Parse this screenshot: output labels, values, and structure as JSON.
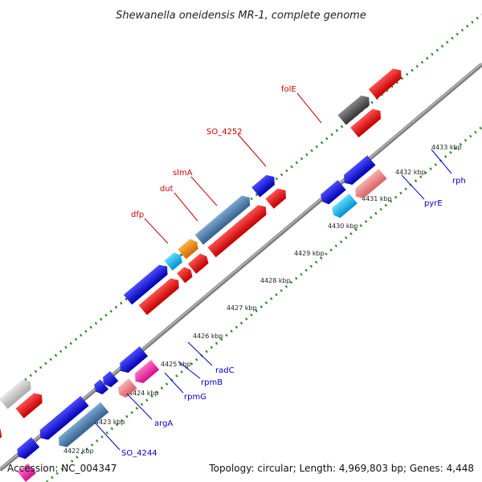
{
  "header": {
    "title": "Shewanella oneidensis MR-1, complete genome"
  },
  "footer": {
    "accession": "Accession: NC_004347",
    "summary": "Topology: circular; Length: 4,969,803 bp; Genes: 4,448"
  },
  "colors": {
    "backbone": "#8a8a8a",
    "tick_dots": "#1f8a1f",
    "forward_label": "#cc0000",
    "reverse_label": "#0000cc",
    "gene_blue": "#0000ee",
    "gene_red": "#ee0000",
    "gene_steelblue": "#4682b4",
    "gene_orange": "#ff8c00",
    "gene_cyan": "#00bfff",
    "gene_pink": "#ff2eaa",
    "gene_lightpink": "#f08080",
    "gene_gray": "#555555",
    "gene_lightgray": "#c8c8c8"
  },
  "tick_labels": [
    "4422 kbp",
    "4423 kbp",
    "4424 kbp",
    "4425 kbp",
    "4426 kbp",
    "4427 kbp",
    "4428 kbp",
    "4429 kbp",
    "4430 kbp",
    "4431 kbp",
    "4432 kbp",
    "4433 kbp"
  ],
  "forward_gene_labels": [
    "dfp",
    "dut",
    "slmA",
    "SO_4252",
    "folE"
  ],
  "reverse_gene_labels": [
    "SO_4244",
    "argA",
    "rpmG",
    "rpmB",
    "radC",
    "pyrE",
    "rph"
  ]
}
